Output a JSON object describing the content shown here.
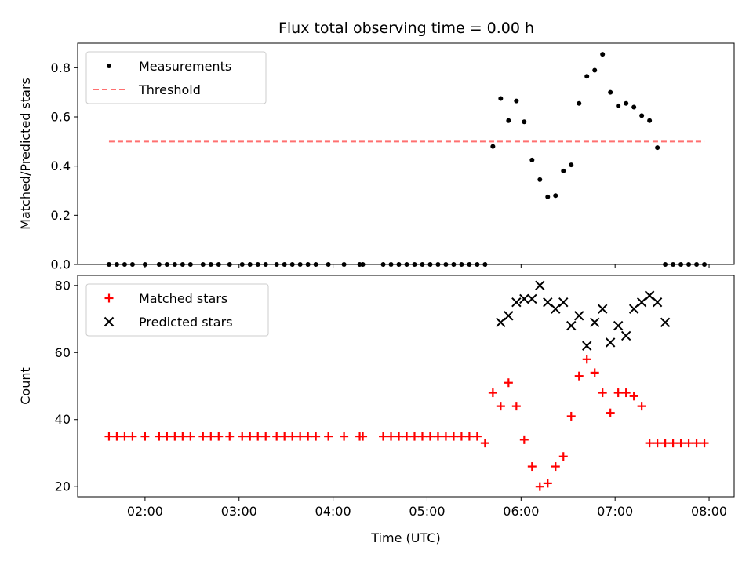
{
  "chart_data": [
    {
      "type": "scatter",
      "title": "Flux total observing time = 0.00 h",
      "xlabel": "",
      "ylabel": "Matched/Predicted stars",
      "xlim": [
        "01:17",
        "08:16"
      ],
      "ylim": [
        0,
        0.9
      ],
      "yticks": [
        "0.0",
        "0.2",
        "0.4",
        "0.6",
        "0.8"
      ],
      "legend_position": "top-left",
      "grid": false,
      "series": [
        {
          "name": "Measurements",
          "marker": "dot",
          "color": "#000000",
          "x": [
            "01:37",
            "01:42",
            "01:47",
            "01:52",
            "02:00",
            "02:09",
            "02:14",
            "02:19",
            "02:24",
            "02:29",
            "02:37",
            "02:42",
            "02:47",
            "02:54",
            "03:02",
            "03:07",
            "03:12",
            "03:17",
            "03:24",
            "03:29",
            "03:34",
            "03:39",
            "03:44",
            "03:49",
            "03:57",
            "04:07",
            "04:17",
            "04:19",
            "04:32",
            "04:37",
            "04:42",
            "04:47",
            "04:52",
            "04:57",
            "05:02",
            "05:07",
            "05:12",
            "05:17",
            "05:22",
            "05:27",
            "05:32",
            "05:37",
            "05:42",
            "05:47",
            "05:52",
            "05:57",
            "06:02",
            "06:07",
            "06:12",
            "06:17",
            "06:22",
            "06:27",
            "06:32",
            "06:37",
            "06:42",
            "06:47",
            "06:52",
            "06:57",
            "07:02",
            "07:07",
            "07:12",
            "07:17",
            "07:22",
            "07:27",
            "07:32",
            "07:37",
            "07:42",
            "07:47",
            "07:52",
            "07:57"
          ],
          "y": [
            0,
            0,
            0,
            0,
            0,
            0,
            0,
            0,
            0,
            0,
            0,
            0,
            0,
            0,
            0,
            0,
            0,
            0,
            0,
            0,
            0,
            0,
            0,
            0,
            0,
            0,
            0,
            0,
            0,
            0,
            0,
            0,
            0,
            0,
            0,
            0,
            0,
            0,
            0,
            0,
            0,
            0,
            0.48,
            0.675,
            0.585,
            0.665,
            0.58,
            0.425,
            0.345,
            0.275,
            0.28,
            0.38,
            0.405,
            0.655,
            0.765,
            0.79,
            0.855,
            0.7,
            0.645,
            0.655,
            0.64,
            0.605,
            0.585,
            0.475,
            0,
            0,
            0,
            0,
            0,
            0
          ]
        },
        {
          "name": "Threshold",
          "marker": "dashed-line",
          "color": "#ff7070",
          "x": [
            "01:37",
            "07:57"
          ],
          "y": [
            0.5,
            0.5
          ]
        }
      ]
    },
    {
      "type": "scatter",
      "title": "",
      "xlabel": "Time (UTC)",
      "ylabel": "Count",
      "xlim": [
        "01:17",
        "08:16"
      ],
      "ylim": [
        17,
        83
      ],
      "xticks": [
        "02:00",
        "03:00",
        "04:00",
        "05:00",
        "06:00",
        "07:00",
        "08:00"
      ],
      "yticks": [
        "20",
        "40",
        "60",
        "80"
      ],
      "legend_position": "top-left",
      "grid": false,
      "series": [
        {
          "name": "Matched stars",
          "marker": "plus",
          "color": "#ff0000",
          "x": [
            "01:37",
            "01:42",
            "01:47",
            "01:52",
            "02:00",
            "02:09",
            "02:14",
            "02:19",
            "02:24",
            "02:29",
            "02:37",
            "02:42",
            "02:47",
            "02:54",
            "03:02",
            "03:07",
            "03:12",
            "03:17",
            "03:24",
            "03:29",
            "03:34",
            "03:39",
            "03:44",
            "03:49",
            "03:57",
            "04:07",
            "04:17",
            "04:19",
            "04:32",
            "04:37",
            "04:42",
            "04:47",
            "04:52",
            "04:57",
            "05:02",
            "05:07",
            "05:12",
            "05:17",
            "05:22",
            "05:27",
            "05:32",
            "05:37",
            "05:42",
            "05:47",
            "05:52",
            "05:57",
            "06:02",
            "06:07",
            "06:12",
            "06:17",
            "06:22",
            "06:27",
            "06:32",
            "06:37",
            "06:42",
            "06:47",
            "06:52",
            "06:57",
            "07:02",
            "07:07",
            "07:12",
            "07:17",
            "07:22",
            "07:27",
            "07:32",
            "07:37",
            "07:42",
            "07:47",
            "07:52",
            "07:57"
          ],
          "y": [
            35,
            35,
            35,
            35,
            35,
            35,
            35,
            35,
            35,
            35,
            35,
            35,
            35,
            35,
            35,
            35,
            35,
            35,
            35,
            35,
            35,
            35,
            35,
            35,
            35,
            35,
            35,
            35,
            35,
            35,
            35,
            35,
            35,
            35,
            35,
            35,
            35,
            35,
            35,
            35,
            35,
            33,
            48,
            44,
            51,
            44,
            34,
            26,
            20,
            21,
            26,
            29,
            41,
            53,
            58,
            54,
            48,
            42,
            48,
            48,
            47,
            44,
            33,
            33,
            33,
            33,
            33,
            33,
            33,
            33
          ]
        },
        {
          "name": "Predicted stars",
          "marker": "x",
          "color": "#000000",
          "x": [
            "05:47",
            "05:52",
            "05:57",
            "06:02",
            "06:07",
            "06:12",
            "06:17",
            "06:22",
            "06:27",
            "06:32",
            "06:37",
            "06:42",
            "06:47",
            "06:52",
            "06:57",
            "07:02",
            "07:07",
            "07:12",
            "07:17",
            "07:22",
            "07:27",
            "07:32"
          ],
          "y": [
            69,
            71,
            75,
            76,
            76,
            80,
            75,
            73,
            75,
            68,
            71,
            62,
            69,
            73,
            63,
            68,
            65,
            73,
            75,
            77,
            75,
            69
          ]
        }
      ]
    }
  ]
}
